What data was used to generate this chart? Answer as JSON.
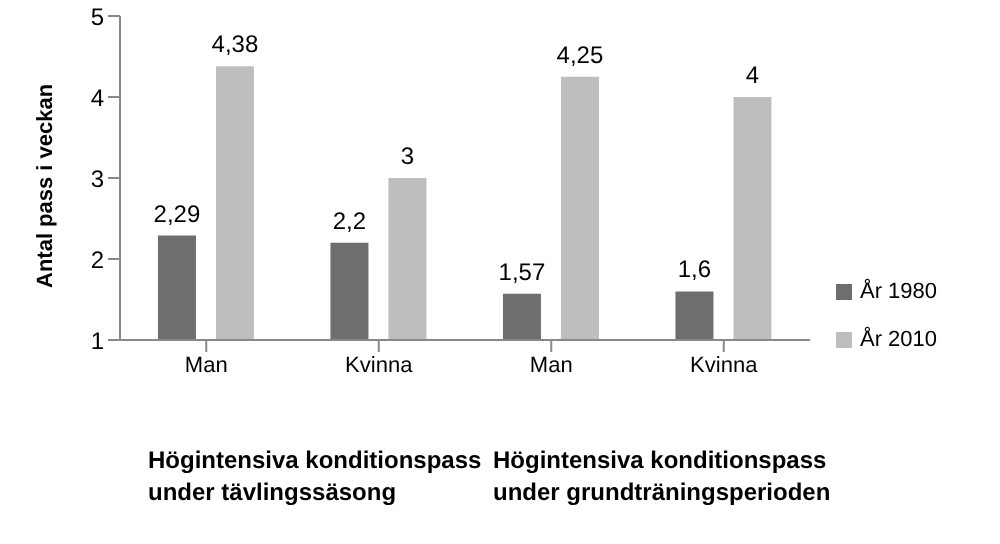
{
  "chart_data": {
    "type": "bar",
    "ylabel": "Antal pass i veckan",
    "categories": [
      "Man",
      "Kvinna",
      "Man",
      "Kvinna"
    ],
    "series": [
      {
        "name": "År 1980",
        "color": "#6e6e6e",
        "values": [
          2.29,
          2.2,
          1.57,
          1.6
        ],
        "value_labels": [
          "2,29",
          "2,2",
          "1,57",
          "1,6"
        ]
      },
      {
        "name": "År 2010",
        "color": "#bebebe",
        "values": [
          4.38,
          3,
          4.25,
          4
        ],
        "value_labels": [
          "4,38",
          "3",
          "4,25",
          "4"
        ]
      }
    ],
    "ylim": [
      1,
      5
    ],
    "yticks": [
      1,
      2,
      3,
      4,
      5
    ],
    "grid": false,
    "legend": "right",
    "annotations": [
      "Högintensiva konditionspass under tävlingssäsong",
      "Högintensiva konditionspass under grundträningsperioden"
    ]
  }
}
